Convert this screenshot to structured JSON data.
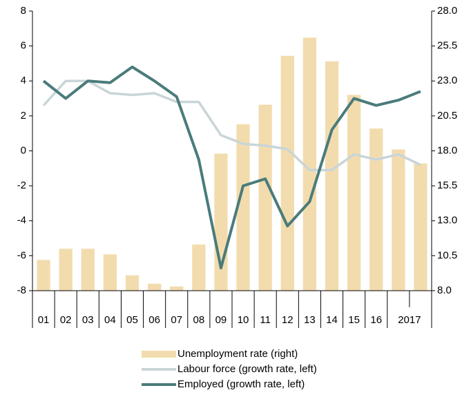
{
  "chart_data": {
    "type": "bar-line",
    "categories": [
      "01",
      "02",
      "03",
      "04",
      "05",
      "06",
      "07",
      "08",
      "09",
      "10",
      "11",
      "12",
      "13",
      "14",
      "15",
      "16",
      "2017",
      null
    ],
    "series": [
      {
        "name": "Unemployment rate (right)",
        "type": "bar",
        "axis": "y2",
        "color": "#f2dcae",
        "values": [
          10.2,
          11.0,
          11.0,
          10.6,
          9.1,
          8.5,
          8.3,
          11.3,
          17.8,
          19.9,
          21.3,
          24.8,
          26.1,
          24.4,
          22.0,
          19.6,
          18.1,
          17.1
        ]
      },
      {
        "name": "Labour force (growth rate, left)",
        "type": "line",
        "axis": "y",
        "color": "#c9d5d8",
        "values": [
          2.6,
          4.0,
          4.0,
          3.3,
          3.2,
          3.3,
          2.8,
          2.8,
          0.9,
          0.4,
          0.3,
          0.1,
          -1.1,
          -1.1,
          -0.2,
          -0.5,
          -0.2,
          -0.8
        ]
      },
      {
        "name": "Employed (growth rate, left)",
        "type": "line",
        "axis": "y",
        "color": "#4a7b7b",
        "values": [
          4.0,
          3.0,
          4.0,
          3.9,
          4.8,
          4.0,
          3.1,
          -0.5,
          -6.7,
          -2.0,
          -1.6,
          -4.3,
          -2.9,
          1.2,
          3.0,
          2.6,
          2.9,
          3.4
        ]
      }
    ],
    "ylim": [
      -8,
      8
    ],
    "yticks": [
      -8,
      -6,
      -4,
      -2,
      0,
      2,
      4,
      6,
      8
    ],
    "y2lim": [
      8,
      28
    ],
    "y2ticks": [
      {
        "value": 8,
        "label": "8.0"
      },
      10.5,
      {
        "value": 13,
        "label": "13.0"
      },
      15.5,
      {
        "value": 18,
        "label": "18.0"
      },
      20.5,
      {
        "value": 23,
        "label": "23.0"
      },
      25.5,
      {
        "value": 28,
        "label": "28.0"
      }
    ]
  }
}
